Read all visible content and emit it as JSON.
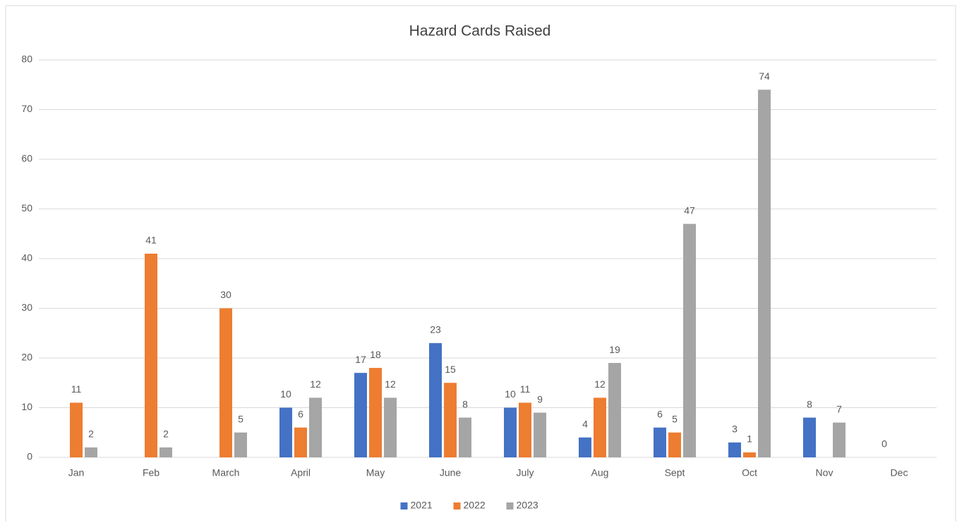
{
  "chart_data": {
    "type": "bar",
    "title": "Hazard Cards Raised",
    "categories": [
      "Jan",
      "Feb",
      "March",
      "April",
      "May",
      "June",
      "July",
      "Aug",
      "Sept",
      "Oct",
      "Nov",
      "Dec"
    ],
    "series": [
      {
        "name": "2021",
        "color": "#4472c4",
        "values": [
          null,
          null,
          null,
          10,
          17,
          23,
          10,
          4,
          6,
          3,
          8,
          0
        ]
      },
      {
        "name": "2022",
        "color": "#ed7d31",
        "values": [
          11,
          41,
          30,
          6,
          18,
          15,
          11,
          12,
          5,
          1,
          null,
          null
        ]
      },
      {
        "name": "2023",
        "color": "#a5a5a5",
        "values": [
          2,
          2,
          5,
          12,
          12,
          8,
          9,
          19,
          47,
          74,
          7,
          null
        ]
      }
    ],
    "ylim": [
      0,
      80
    ],
    "yticks": [
      0,
      10,
      20,
      30,
      40,
      50,
      60,
      70,
      80
    ],
    "grid": true,
    "legend": "bottom"
  }
}
